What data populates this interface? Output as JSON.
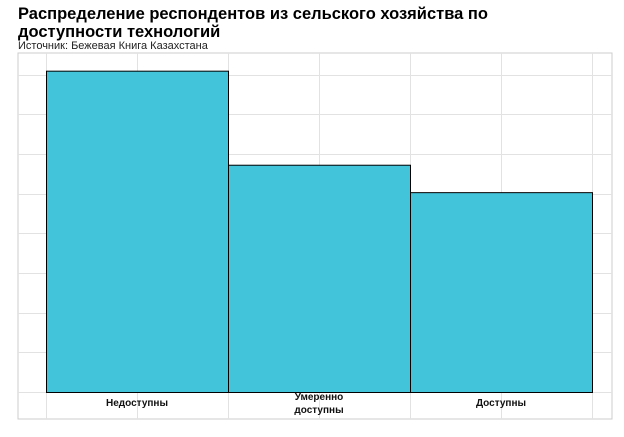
{
  "title": "Распределение респондентов из сельского хозяйства по доступности технологий",
  "subtitle": "Источник: Бежевая Книга Казахстана",
  "chart_data": {
    "type": "bar",
    "title": "Распределение респондентов из сельского хозяйства по доступности технологий",
    "subtitle": "Источник: Бежевая Книга Казахстана",
    "categories": [
      "Недоступны",
      "Умеренно доступны",
      "Доступны"
    ],
    "category_lines": [
      [
        "Недоступны"
      ],
      [
        "Умеренно",
        "доступны"
      ],
      [
        "Доступны"
      ]
    ],
    "values": [
      41,
      29,
      25.5
    ],
    "ylim": [
      0,
      43
    ],
    "xlabel": "",
    "ylabel": "",
    "grid": true,
    "y_tick_labels_shown": false,
    "bar_color": "#42c4db",
    "bar_edge_color": "#000000"
  }
}
